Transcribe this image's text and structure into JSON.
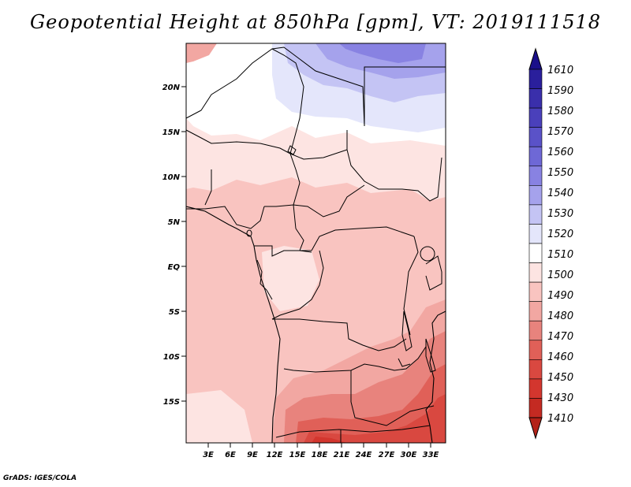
{
  "title": "Geopotential Height at 850hPa [gpm], VT: 2019111518",
  "credit": "GrADS: IGES/COLA",
  "map": {
    "lat_labels": [
      "20N",
      "15N",
      "10N",
      "5N",
      "EQ",
      "5S",
      "10S",
      "15S"
    ],
    "lon_labels": [
      "3E",
      "6E",
      "9E",
      "12E",
      "15E",
      "18E",
      "21E",
      "24E",
      "27E",
      "30E",
      "33E"
    ]
  },
  "colorbar": {
    "levels": [
      "1610",
      "1590",
      "1580",
      "1570",
      "1560",
      "1550",
      "1540",
      "1530",
      "1520",
      "1510",
      "1500",
      "1490",
      "1480",
      "1470",
      "1460",
      "1450",
      "1430",
      "1410"
    ],
    "colors": {
      "top_arrow": "#1a0f8a",
      "1600": "#2a1f9c",
      "1590": "#3a2fab",
      "1580": "#4a40bb",
      "1570": "#5a52c8",
      "1560": "#6e68d6",
      "1550": "#8882e2",
      "1540": "#a5a2ec",
      "1530": "#c4c4f4",
      "1520": "#e4e6fb",
      "1510": "#ffffff",
      "1500": "#fde4e2",
      "1490": "#f9c4c0",
      "1480": "#f2a7a2",
      "1470": "#e8837d",
      "1460": "#e06058",
      "1450": "#d94840",
      "1430": "#d3362e",
      "1410": "#c42a22",
      "bottom_arrow": "#b32218"
    }
  }
}
